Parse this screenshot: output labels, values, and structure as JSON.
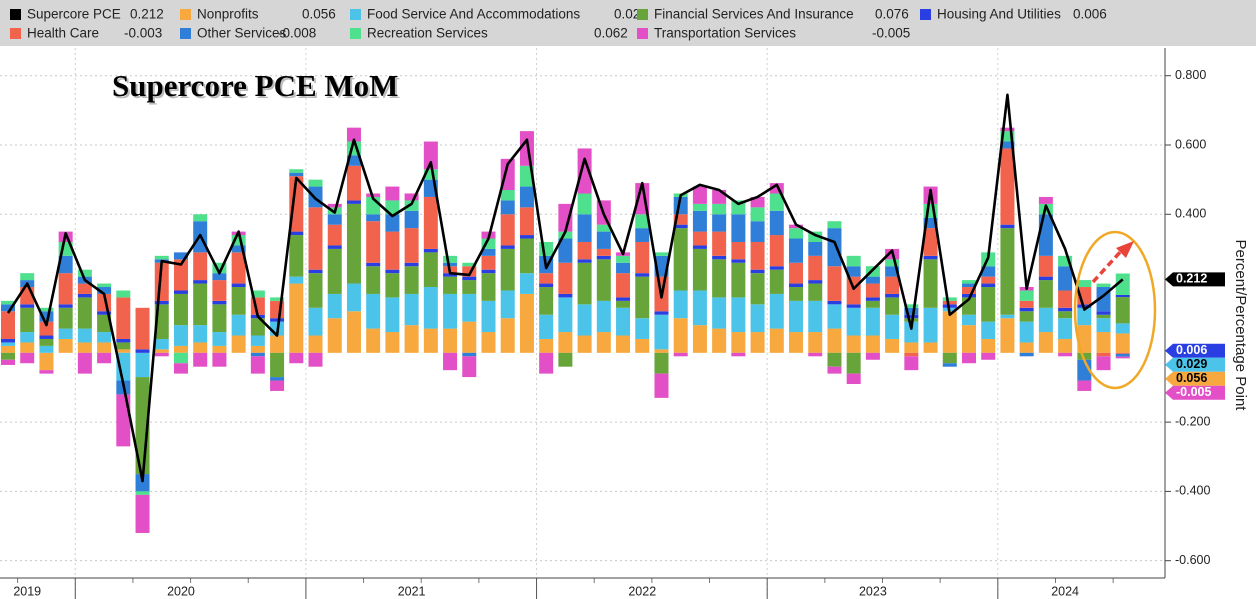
{
  "chart_data": {
    "type": "bar",
    "stacked": true,
    "title": "Supercore PCE MoM",
    "y_axis_label": "Percent/Percentage Point",
    "categories": [
      null,
      "2019",
      null,
      null,
      null,
      null,
      null,
      null,
      null,
      "2020",
      null,
      null,
      null,
      null,
      null,
      null,
      null,
      null,
      null,
      null,
      null,
      "2021",
      null,
      null,
      null,
      null,
      null,
      null,
      null,
      null,
      null,
      null,
      null,
      "2022",
      null,
      null,
      null,
      null,
      null,
      null,
      null,
      null,
      null,
      null,
      null,
      "2023",
      null,
      null,
      null,
      null,
      null,
      null,
      null,
      null,
      null,
      "2024",
      null,
      null,
      null
    ],
    "ylim": [
      -0.65,
      0.88
    ],
    "yticks": [
      {
        "value": 0.8,
        "label": "0.800"
      },
      {
        "value": 0.6,
        "label": "0.600"
      },
      {
        "value": 0.4,
        "label": "0.400"
      },
      {
        "value": -0.2,
        "label": "-0.200"
      },
      {
        "value": -0.4,
        "label": "-0.400"
      },
      {
        "value": -0.6,
        "label": "-0.600"
      }
    ],
    "grid": true,
    "series": [
      {
        "name": "Supercore PCE",
        "type": "line",
        "color": "#000000",
        "values": [
          0.115,
          0.2,
          0.08,
          0.345,
          0.21,
          0.17,
          -0.09,
          -0.37,
          0.265,
          0.255,
          0.34,
          0.23,
          0.35,
          0.105,
          0.05,
          0.505,
          0.445,
          0.405,
          0.615,
          0.445,
          0.395,
          0.43,
          0.55,
          0.23,
          0.225,
          0.33,
          0.545,
          0.615,
          0.245,
          0.35,
          0.56,
          0.4,
          0.285,
          0.49,
          0.16,
          0.455,
          0.485,
          0.47,
          0.43,
          0.45,
          0.485,
          0.37,
          0.34,
          0.32,
          0.185,
          0.24,
          0.295,
          0.07,
          0.47,
          0.11,
          0.155,
          0.275,
          0.745,
          0.185,
          0.425,
          0.3,
          0.125,
          0.165,
          0.212
        ]
      },
      {
        "name": "Nonprofits",
        "type": "bar",
        "color": "#f7a83e",
        "values": [
          0.02,
          0.03,
          -0.05,
          0.04,
          0.03,
          0.03,
          0.01,
          0,
          0.01,
          0.02,
          0.03,
          0.02,
          0.05,
          0.02,
          0.05,
          0.2,
          0.05,
          0.1,
          0.12,
          0.07,
          0.06,
          0.08,
          0.07,
          0.07,
          0.09,
          0.06,
          0.1,
          0.17,
          0.04,
          0.06,
          0.05,
          0.06,
          0.05,
          0.04,
          0.01,
          0.1,
          0.08,
          0.07,
          0.06,
          0.06,
          0.07,
          0.06,
          0.06,
          0.07,
          0.05,
          0.05,
          0.04,
          0.03,
          0.03,
          0.12,
          0.08,
          0.04,
          0.1,
          0.03,
          0.06,
          0.04,
          0.08,
          0.06,
          0.056
        ]
      },
      {
        "name": "Food Service And Accommodations",
        "type": "bar",
        "color": "#4cc4ea",
        "values": [
          0.01,
          0.03,
          0.02,
          0.03,
          0.04,
          0.03,
          -0.08,
          -0.07,
          0.03,
          0.06,
          0.05,
          0.04,
          0.06,
          0.03,
          0.04,
          0.02,
          0.08,
          0.07,
          0.08,
          0.1,
          0.1,
          0.09,
          0.12,
          0.1,
          0.08,
          0.09,
          0.08,
          0.06,
          0.07,
          0.1,
          0.09,
          0.09,
          0.08,
          0.06,
          0.1,
          0.08,
          0.1,
          0.09,
          0.1,
          0.08,
          0.1,
          0.09,
          0.09,
          0.07,
          0.08,
          0.08,
          0.07,
          0.06,
          0.1,
          0.01,
          0.03,
          0.05,
          0.01,
          0.06,
          0.07,
          0.06,
          0.05,
          0.04,
          0.029
        ]
      },
      {
        "name": "Financial Services And Insurance",
        "type": "bar",
        "color": "#67a53b",
        "values": [
          -0.02,
          0.07,
          0.02,
          0.06,
          0.09,
          0.05,
          0.02,
          -0.28,
          0.1,
          0.09,
          0.12,
          0.08,
          0.08,
          0.05,
          -0.07,
          0.12,
          0.1,
          0.13,
          0.23,
          0.08,
          0.07,
          0.08,
          0.1,
          0.05,
          0.04,
          0.08,
          0.12,
          0.1,
          0.08,
          -0.04,
          0.12,
          0.12,
          0.02,
          0.12,
          -0.06,
          0.18,
          0.12,
          0.11,
          0.1,
          0.09,
          0.07,
          0.04,
          0.05,
          -0.04,
          -0.06,
          0.02,
          0.05,
          0.01,
          0.14,
          -0.03,
          0.05,
          0.1,
          0.25,
          0.03,
          0.08,
          0.02,
          -0.02,
          0.01,
          0.076
        ]
      },
      {
        "name": "Housing And Utilities",
        "type": "bar",
        "color": "#2a3fe2",
        "values": [
          0.01,
          0.01,
          0.01,
          0.01,
          0.01,
          0.01,
          0.01,
          0.01,
          0.01,
          0.01,
          0.01,
          0.01,
          0.01,
          0.01,
          0.01,
          0.01,
          0.01,
          0.01,
          0.01,
          0.01,
          0.01,
          0.01,
          0.01,
          0.01,
          0.01,
          0.01,
          0.01,
          0.01,
          0.01,
          0.01,
          0.01,
          0.01,
          0.01,
          0.01,
          0.01,
          0.01,
          0.01,
          0.01,
          0.01,
          0.01,
          0.01,
          0.01,
          0.01,
          0.01,
          0.01,
          0.01,
          0.01,
          0.01,
          0.01,
          0.01,
          0.01,
          0.01,
          0.01,
          0.01,
          0.01,
          0.01,
          0.01,
          0.01,
          0.006
        ]
      },
      {
        "name": "Health Care",
        "type": "bar",
        "color": "#f2634e",
        "values": [
          0.08,
          0.05,
          0.04,
          0.09,
          0.03,
          0.05,
          0.12,
          0.12,
          0.11,
          0.09,
          0.08,
          0.06,
          0.09,
          0.05,
          0.05,
          0.16,
          0.18,
          0.06,
          0.1,
          0.12,
          0.11,
          0.1,
          0.15,
          0.02,
          0.03,
          0.04,
          0.09,
          0.08,
          0.03,
          0.09,
          0.05,
          0.02,
          0.07,
          0.09,
          0.1,
          0.03,
          0.04,
          0.07,
          0.05,
          0.08,
          0.09,
          0.06,
          0.07,
          0.1,
          0.08,
          0.04,
          0.05,
          -0.01,
          0.08,
          0.01,
          0.02,
          0.02,
          0.22,
          0.02,
          0.06,
          0.05,
          0.05,
          -0.01,
          -0.003
        ]
      },
      {
        "name": "Other Services",
        "type": "bar",
        "color": "#2f7fd8",
        "values": [
          0.02,
          0.02,
          0.03,
          0.05,
          0.02,
          0.02,
          -0.04,
          -0.05,
          0.01,
          0.02,
          0.09,
          0.02,
          0.02,
          -0.01,
          -0.01,
          0.01,
          0.06,
          0.03,
          0.03,
          0.02,
          0.05,
          0.05,
          0.05,
          0.01,
          -0.01,
          0.02,
          0.04,
          0.06,
          0.05,
          0.07,
          0.08,
          0.05,
          0.03,
          0.04,
          0.06,
          0.05,
          0.06,
          0.05,
          0.08,
          0.06,
          0.07,
          0.07,
          0.04,
          0.11,
          0.03,
          0.02,
          0.03,
          0.02,
          0.03,
          -0.01,
          0.01,
          0.03,
          0.02,
          -0.01,
          0.12,
          0.07,
          -0.06,
          0.07,
          -0.008
        ]
      },
      {
        "name": "Recreation Services",
        "type": "bar",
        "color": "#4ee08c",
        "values": [
          0.01,
          0.02,
          0.01,
          0.04,
          0.02,
          0.01,
          0.02,
          -0.01,
          0.01,
          -0.03,
          0.02,
          0.03,
          0.03,
          0.02,
          0.01,
          0.01,
          0.02,
          0.02,
          0.04,
          0.05,
          0.04,
          0.03,
          0.03,
          0.02,
          0.01,
          0.03,
          0.03,
          0.06,
          0.04,
          0.02,
          0.06,
          0.02,
          0.02,
          0.04,
          0.01,
          0.01,
          0.02,
          0.03,
          0.04,
          0.04,
          0.05,
          0.03,
          0.03,
          0.02,
          0.03,
          0.03,
          0.02,
          0.01,
          0.04,
          0.01,
          0.01,
          0.04,
          0.03,
          0.03,
          0.03,
          0.03,
          0.02,
          0.01,
          0.062
        ]
      },
      {
        "name": "Transportation Services",
        "type": "bar",
        "color": "#e24fc6",
        "values": [
          -0.015,
          -0.03,
          -0.01,
          0.03,
          -0.06,
          -0.03,
          -0.15,
          -0.11,
          -0.01,
          -0.03,
          -0.04,
          -0.04,
          0.01,
          -0.05,
          -0.03,
          -0.03,
          -0.04,
          0.01,
          0.04,
          0.01,
          0.04,
          0.02,
          0.08,
          -0.05,
          -0.06,
          0.02,
          0.09,
          0.1,
          -0.06,
          0.08,
          0.13,
          0.07,
          0.01,
          0.09,
          -0.07,
          -0.01,
          0.05,
          0.04,
          -0.01,
          0.03,
          0.03,
          0.01,
          -0.01,
          -0.02,
          -0.03,
          -0.02,
          0.03,
          -0.04,
          0.05,
          0,
          -0.03,
          -0.02,
          0.01,
          0.01,
          0.02,
          -0.01,
          -0.03,
          -0.04,
          -0.005
        ]
      }
    ]
  }
}
